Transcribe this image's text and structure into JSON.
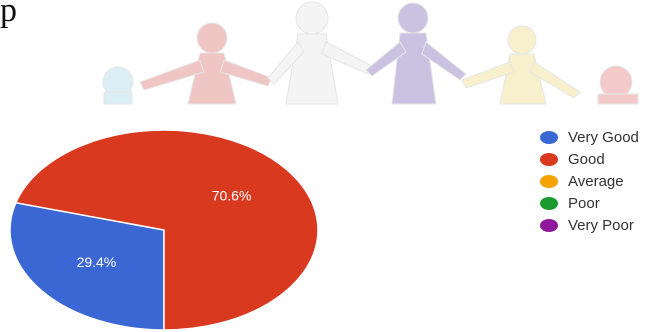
{
  "header": {
    "stray_text": "p"
  },
  "banner": {
    "icon": "paper-people-chain-icon",
    "colors": [
      "#dbeef5",
      "#efc6c4",
      "#f4f4f4",
      "#cbc2e1",
      "#f8f0cc",
      "#f4c9c9"
    ]
  },
  "chart_data": {
    "type": "pie",
    "title": "",
    "categories": [
      "Very Good",
      "Good",
      "Average",
      "Poor",
      "Very Poor"
    ],
    "values": [
      29.4,
      70.6,
      0,
      0,
      0
    ],
    "slice_labels": [
      "29.4%",
      "70.6%",
      "",
      "",
      ""
    ],
    "colors": [
      "#3b67d4",
      "#d9391f",
      "#f4a300",
      "#1a9a2f",
      "#8f1898"
    ],
    "legend": "right",
    "start_angle_deg": 90,
    "direction": "clockwise"
  }
}
